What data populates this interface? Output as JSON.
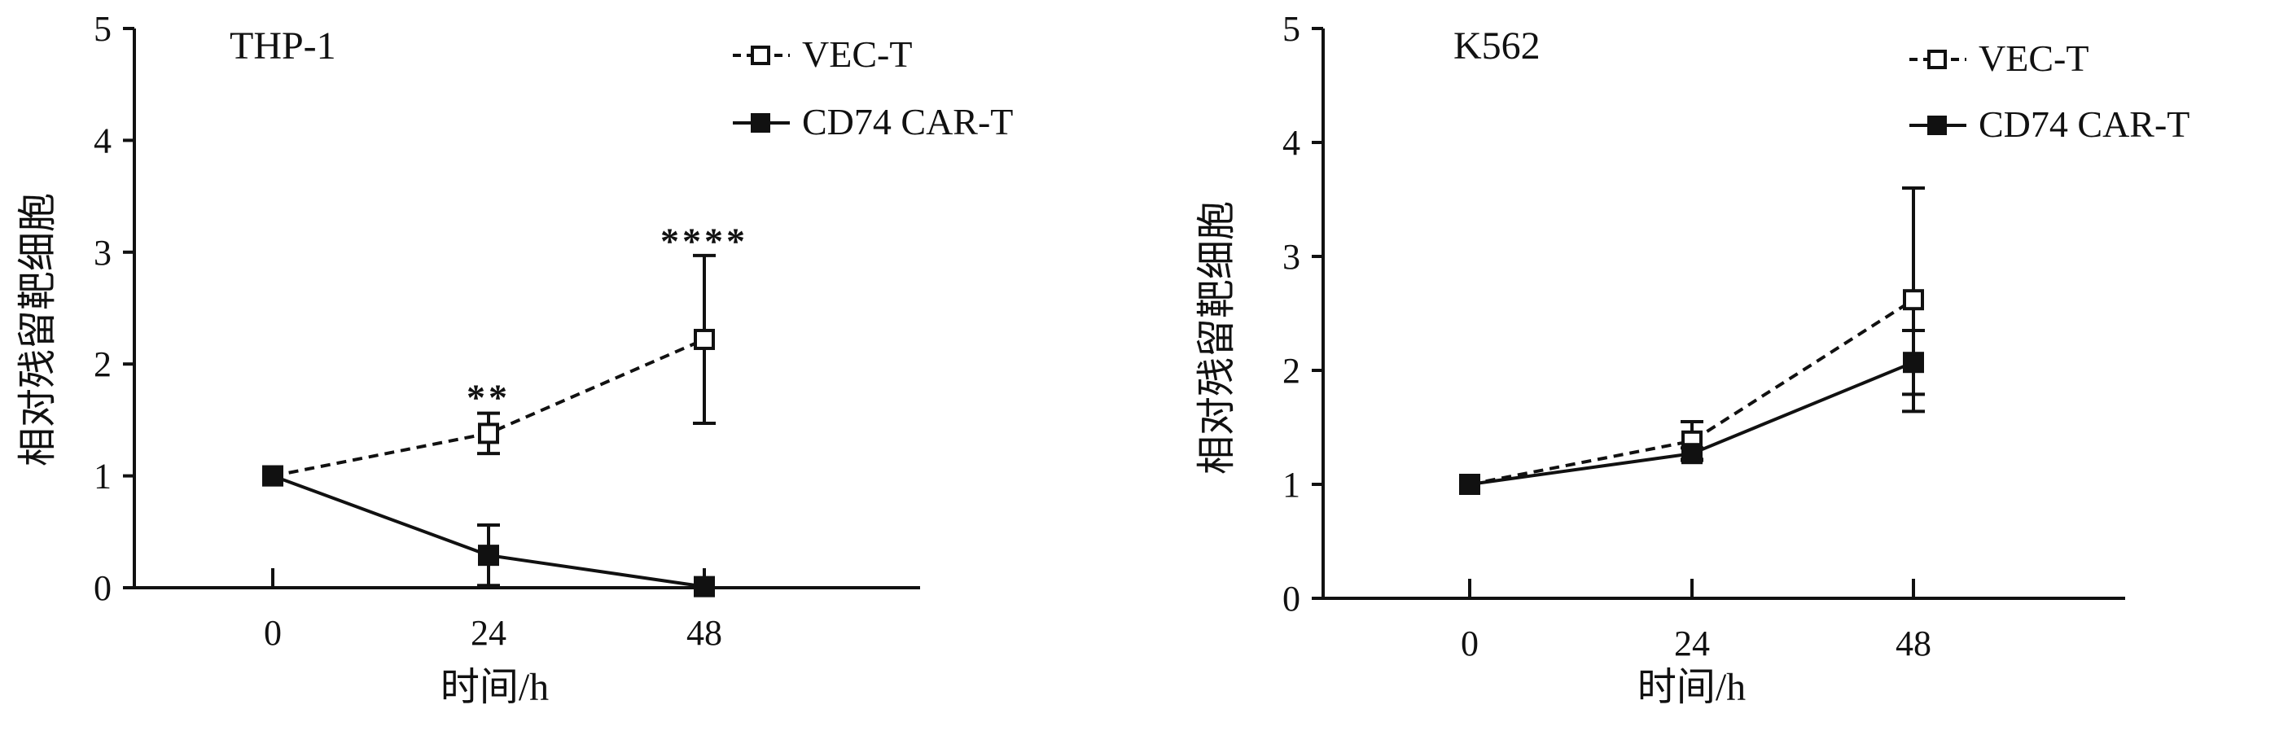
{
  "chart_data": [
    {
      "type": "line",
      "title": "THP-1",
      "xlabel": "时间/h",
      "ylabel": "相对残留靶细胞",
      "categories": [
        "0",
        "24",
        "48"
      ],
      "yticks": [
        "0",
        "1",
        "2",
        "3",
        "4",
        "5"
      ],
      "ylim": [
        0,
        5
      ],
      "grid": false,
      "legend_position": "top-right",
      "series": [
        {
          "name": "VEC-T",
          "style": "dashed",
          "marker": "open-square",
          "color": "#111111",
          "values": [
            1.0,
            1.38,
            2.22
          ],
          "errors": [
            0.0,
            0.18,
            0.75
          ]
        },
        {
          "name": "CD74 CAR-T",
          "style": "solid",
          "marker": "filled-square",
          "color": "#111111",
          "values": [
            1.0,
            0.29,
            0.01
          ],
          "errors": [
            0.0,
            0.27,
            0.0
          ]
        }
      ],
      "annotations": [
        {
          "text": "**",
          "category": "24",
          "y": 1.72
        },
        {
          "text": "****",
          "category": "48",
          "y": 3.12
        }
      ]
    },
    {
      "type": "line",
      "title": "K562",
      "xlabel": "时间/h",
      "ylabel": "相对残留靶细胞",
      "categories": [
        "0",
        "24",
        "48"
      ],
      "yticks": [
        "0",
        "1",
        "2",
        "3",
        "4",
        "5"
      ],
      "ylim": [
        0,
        5
      ],
      "grid": false,
      "legend_position": "top-right",
      "series": [
        {
          "name": "VEC-T",
          "style": "dashed",
          "marker": "open-square",
          "color": "#111111",
          "values": [
            1.0,
            1.38,
            2.62
          ],
          "errors": [
            0.0,
            0.17,
            0.98
          ]
        },
        {
          "name": "CD74 CAR-T",
          "style": "solid",
          "marker": "filled-square",
          "color": "#111111",
          "values": [
            1.0,
            1.27,
            2.07
          ],
          "errors": [
            0.0,
            0.05,
            0.28
          ]
        }
      ],
      "annotations": []
    }
  ]
}
